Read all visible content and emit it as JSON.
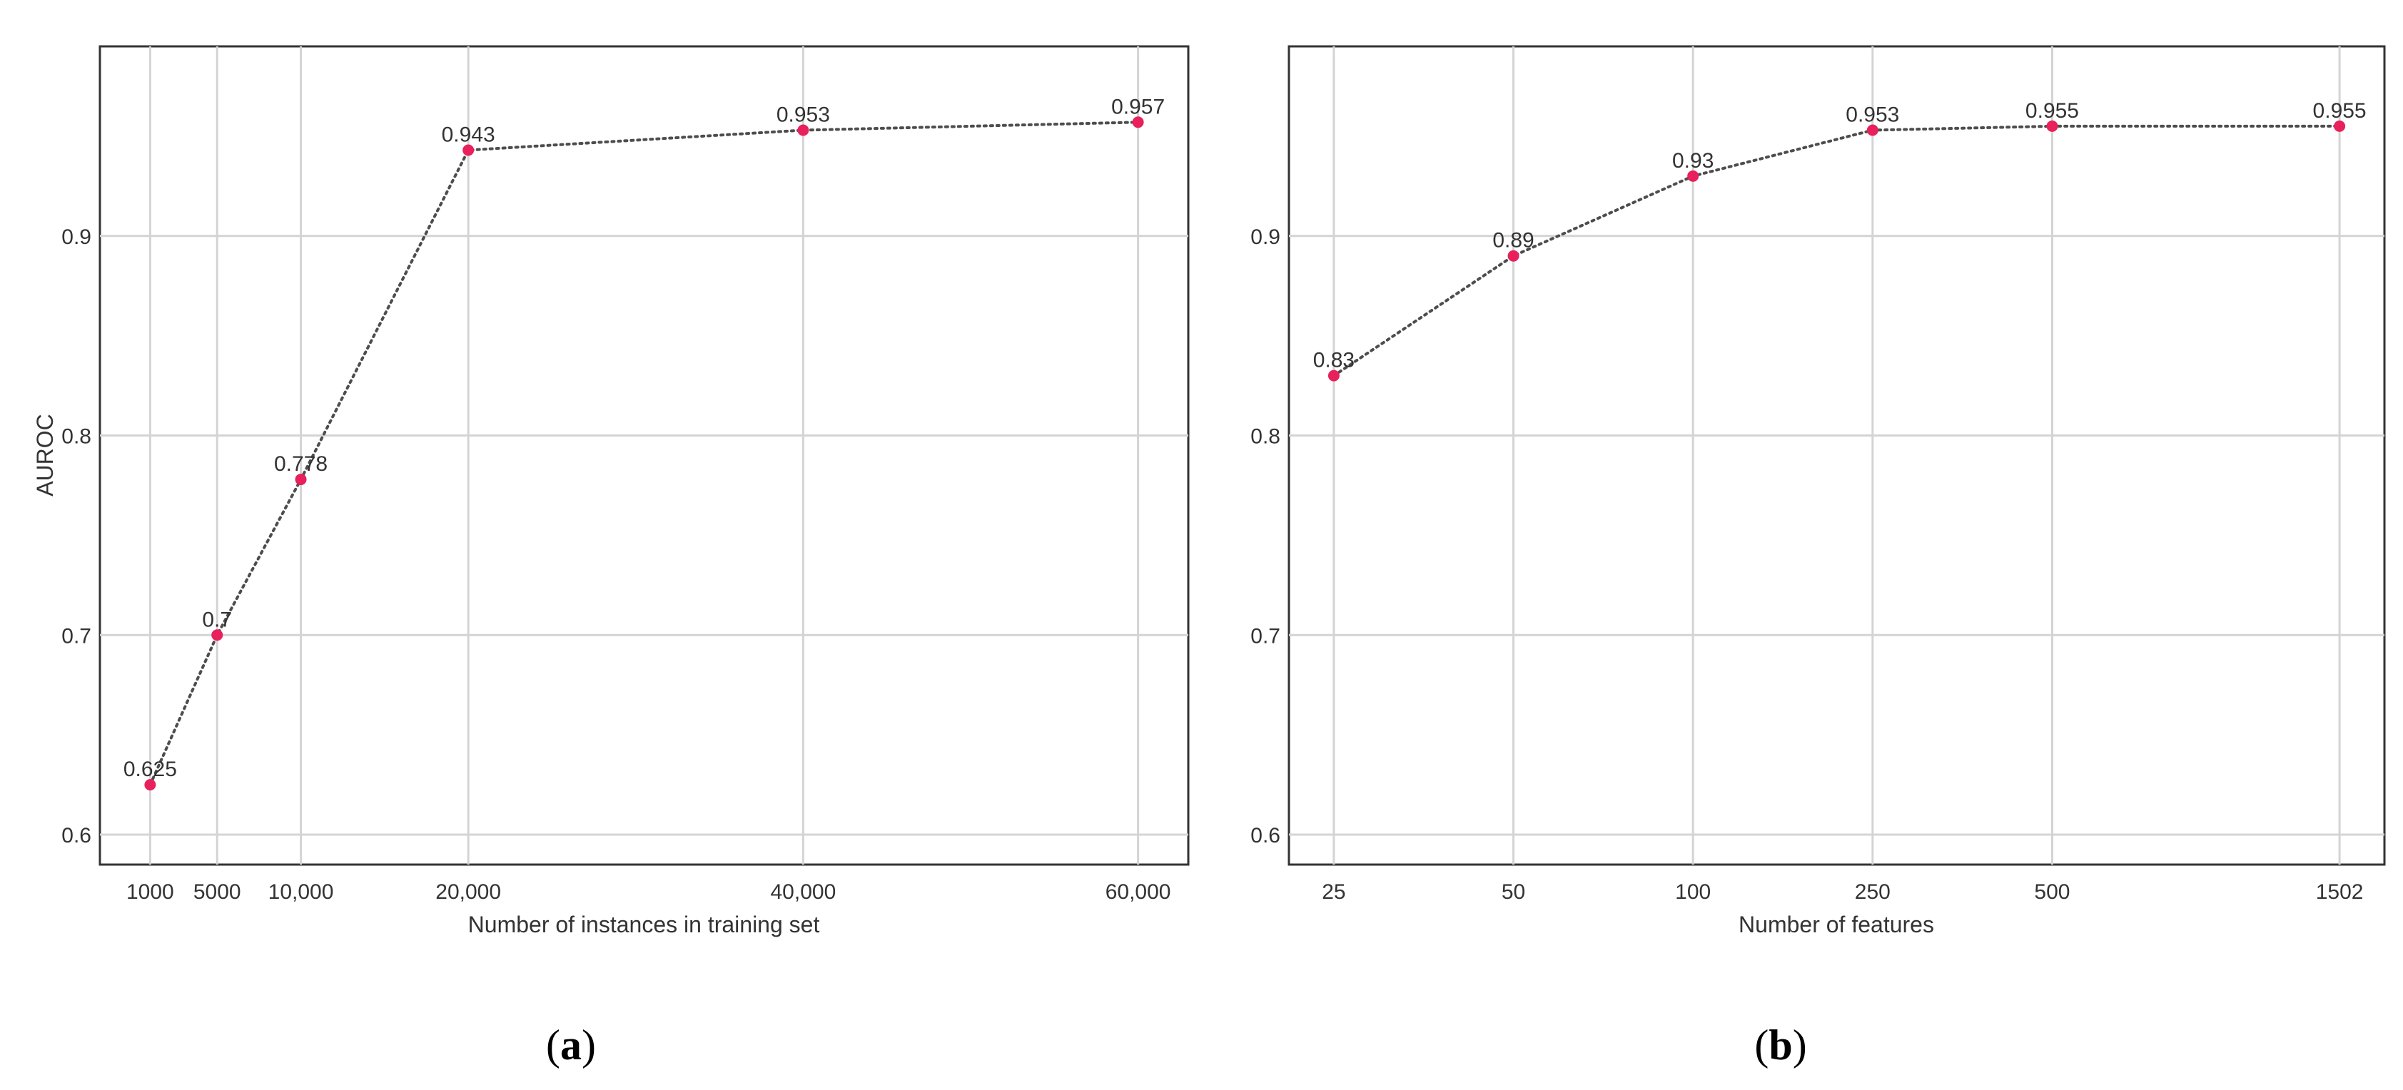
{
  "figure": {
    "panels": [
      {
        "caption_open": "(",
        "caption_letter": "a",
        "caption_close": ")"
      },
      {
        "caption_open": "(",
        "caption_letter": "b",
        "caption_close": ")"
      }
    ]
  },
  "chart_data": [
    {
      "type": "line",
      "title": "",
      "xlabel": "Number of instances in training set",
      "ylabel": "AUROC",
      "x": [
        1000,
        5000,
        10000,
        20000,
        40000,
        60000
      ],
      "xticks": [
        "1000",
        "5000",
        "10,000",
        "20,000",
        "40,000",
        "60,000"
      ],
      "xlim": [
        -2000,
        63000
      ],
      "ylim": [
        0.585,
        0.995
      ],
      "yticks": [
        0.6,
        0.7,
        0.8,
        0.9
      ],
      "ytick_labels": [
        "0.6",
        "0.7",
        "0.8",
        "0.9"
      ],
      "series": [
        {
          "values": [
            0.625,
            0.7,
            0.778,
            0.943,
            0.953,
            0.957
          ],
          "labels": [
            "0.625",
            "0.7",
            "0.778",
            "0.943",
            "0.953",
            "0.957"
          ]
        }
      ],
      "grid": true,
      "line_style": "dotted",
      "line_color": "#4d4d4d",
      "point_color": "#e8205c"
    },
    {
      "type": "line",
      "title": "",
      "xlabel": "Number of features",
      "ylabel": "",
      "categories": [
        "25",
        "50",
        "100",
        "250",
        "500",
        "1502"
      ],
      "x_position_scale": [
        0,
        1,
        2,
        3,
        4,
        5.6
      ],
      "xlim": [
        -0.25,
        5.85
      ],
      "ylim": [
        0.585,
        0.995
      ],
      "yticks": [
        0.6,
        0.7,
        0.8,
        0.9
      ],
      "ytick_labels": [
        "0.6",
        "0.7",
        "0.8",
        "0.9"
      ],
      "series": [
        {
          "values": [
            0.83,
            0.89,
            0.93,
            0.953,
            0.955,
            0.955
          ],
          "labels": [
            "0.83",
            "0.89",
            "0.93",
            "0.953",
            "0.955",
            "0.955"
          ]
        }
      ],
      "grid": true,
      "line_style": "dotted",
      "line_color": "#4d4d4d",
      "point_color": "#e8205c"
    }
  ]
}
